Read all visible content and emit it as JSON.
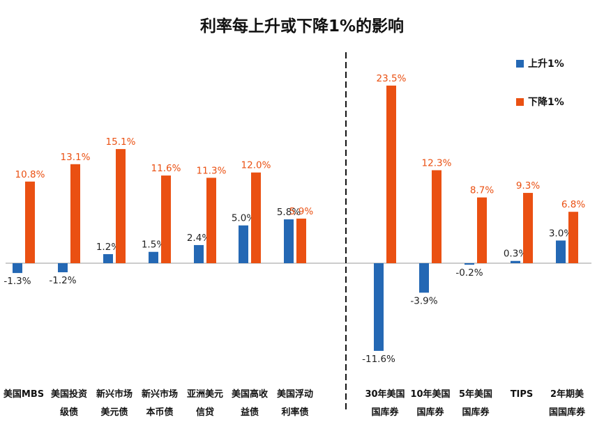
{
  "chart_data": {
    "type": "bar",
    "title": "利率每上升或下降1%的影响",
    "categories": [
      [
        "美国MBS"
      ],
      [
        "美国投资",
        "级债"
      ],
      [
        "新兴市场",
        "美元债"
      ],
      [
        "新兴市场",
        "本币债"
      ],
      [
        "亚洲美元",
        "信贷"
      ],
      [
        "美国高收",
        "益债"
      ],
      [
        "美国浮动",
        "利率债"
      ],
      [
        "30年美国",
        "国库券"
      ],
      [
        "10年美国",
        "国库券"
      ],
      [
        "5年美国",
        "国库券"
      ],
      [
        "TIPS"
      ],
      [
        "2年期美",
        "国国库券"
      ]
    ],
    "series": [
      {
        "name": "上升1%",
        "color": "#2468b4",
        "values": [
          -1.3,
          -1.2,
          1.2,
          1.5,
          2.4,
          5.0,
          5.8,
          -11.6,
          -3.9,
          -0.2,
          0.3,
          3.0
        ],
        "labels": [
          "-1.3%",
          "-1.2%",
          "1.2%",
          "1.5%",
          "2.4%",
          "5.0%",
          "5.8%",
          "-11.6%",
          "-3.9%",
          "-0.2%",
          "0.3%",
          "3.0%"
        ]
      },
      {
        "name": "下降1%",
        "color": "#ea5012",
        "values": [
          10.8,
          13.1,
          15.1,
          11.6,
          11.3,
          12.0,
          5.9,
          23.5,
          12.3,
          8.7,
          9.3,
          6.8
        ],
        "labels": [
          "10.8%",
          "13.1%",
          "15.1%",
          "11.6%",
          "11.3%",
          "12.0%",
          "5.9%",
          "23.5%",
          "12.3%",
          "8.7%",
          "9.3%",
          "6.8%"
        ]
      }
    ],
    "ylim": [
      -11.6,
      23.5
    ],
    "grid": false,
    "legend": "top-right",
    "divider_after_index": 6
  }
}
